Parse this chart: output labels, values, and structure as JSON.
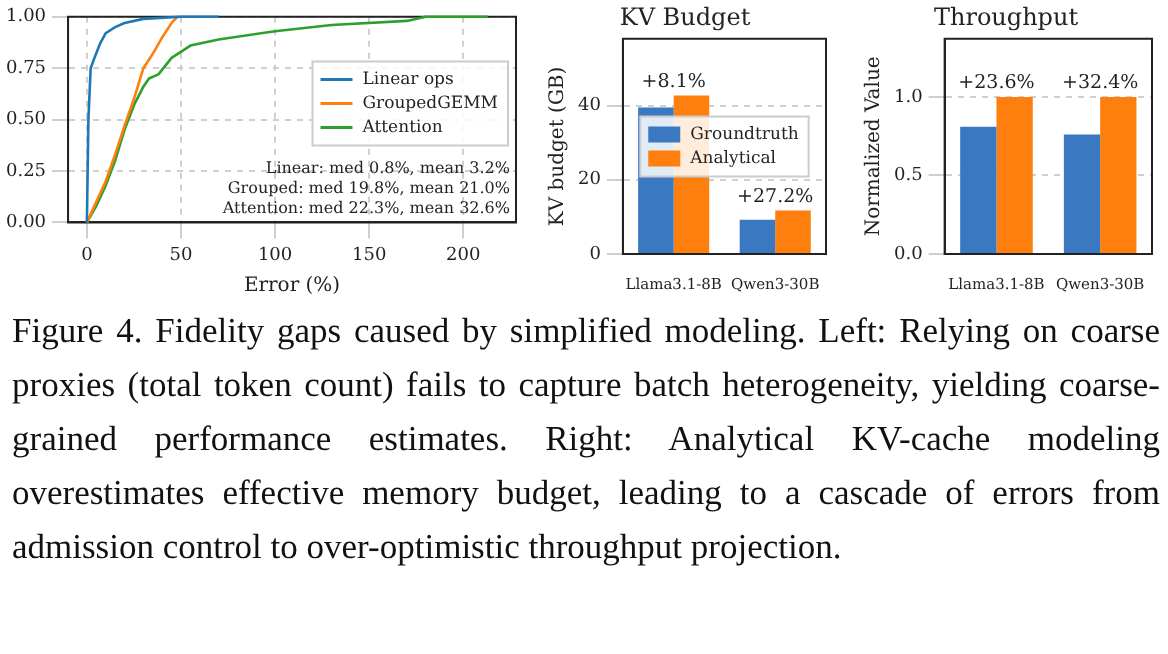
{
  "chart_data": [
    {
      "type": "line",
      "xlabel": "Error (%)",
      "xlim": [
        -10,
        228
      ],
      "xticks": [
        0,
        50,
        100,
        150,
        200
      ],
      "ylim": [
        0,
        1
      ],
      "yticks": [
        {
          "value": 0,
          "label": "0.00"
        },
        {
          "value": 0.25,
          "label": "0.25"
        },
        {
          "value": 0.5,
          "label": "0.50"
        },
        {
          "value": 0.75,
          "label": "0.75"
        },
        {
          "value": 1,
          "label": "1.00"
        }
      ],
      "grid": true,
      "legend": "center right",
      "marker": "none",
      "series": [
        {
          "name": "Linear ops",
          "color": "#1f77b4",
          "x": [
            0,
            0.8,
            2,
            4,
            7,
            10,
            15,
            20,
            30,
            50,
            70
          ],
          "values": [
            0,
            0.5,
            0.75,
            0.8,
            0.87,
            0.92,
            0.95,
            0.97,
            0.99,
            1,
            1
          ]
        },
        {
          "name": "GroupedGEMM",
          "color": "#ff7f0e",
          "x": [
            0,
            5,
            10,
            15,
            20,
            25,
            30,
            35,
            40,
            45,
            48
          ],
          "values": [
            0,
            0.1,
            0.2,
            0.33,
            0.47,
            0.6,
            0.75,
            0.82,
            0.9,
            0.97,
            1
          ]
        },
        {
          "name": "Attention",
          "color": "#2ca02c",
          "x": [
            0,
            5,
            10,
            15,
            20,
            25,
            30,
            33,
            38,
            45,
            55,
            70,
            100,
            130,
            170,
            180,
            213
          ],
          "values": [
            0,
            0.08,
            0.18,
            0.3,
            0.45,
            0.57,
            0.66,
            0.7,
            0.72,
            0.8,
            0.86,
            0.89,
            0.93,
            0.96,
            0.98,
            1,
            1
          ]
        }
      ],
      "annotations": [
        "Linear: med 0.8%, mean 3.2%",
        "Grouped: med 19.8%, mean 21.0%",
        "Attention: med 22.3%, mean 32.6%",
        "Figure 4. Fidelity gaps caused by simplified modeling. Left: Relying on coarse proxies (total token count) fails to capture batch heterogeneity, yielding coarse-grained performance estimates. Right: Analytical KV-cache modeling overestimates effective memory budget, leading to a cascade of errors from admission control to over-optimistic throughput projection."
      ]
    },
    {
      "type": "bar",
      "title": "KV Budget",
      "ylabel": "KV budget (GB)",
      "categories": [
        "Llama3.1-8B",
        "Qwen3-30B"
      ],
      "ylim": [
        0,
        58
      ],
      "yticks": [
        0,
        20,
        40
      ],
      "grid": "y",
      "legend": "center",
      "series": [
        {
          "name": "Groundtruth",
          "color": "#3a78c2",
          "values": [
            39.5,
            9.2
          ]
        },
        {
          "name": "Analytical",
          "color": "#ff7f0e",
          "values": [
            42.7,
            11.7
          ]
        }
      ],
      "annotations": [
        {
          "text": "+8.1%",
          "x": "Llama3.1-8B",
          "y": 42.7
        },
        {
          "text": "+27.2%",
          "x": "Qwen3-30B",
          "y": 11.7
        }
      ]
    },
    {
      "type": "bar",
      "title": "Throughput",
      "ylabel": "Normalized Value",
      "categories": [
        "Llama3.1-8B",
        "Qwen3-30B"
      ],
      "ylim": [
        0,
        1.37
      ],
      "yticks": [
        {
          "value": 0,
          "label": "0.0"
        },
        {
          "value": 0.5,
          "label": "0.5"
        },
        {
          "value": 1,
          "label": "1.0"
        }
      ],
      "grid": "y",
      "series": [
        {
          "color": "#3a78c2",
          "values": [
            0.81,
            0.76
          ]
        },
        {
          "color": "#ff7f0e",
          "values": [
            1,
            1
          ]
        }
      ],
      "annotations": [
        {
          "text": "+23.6%",
          "x": "Llama3.1-8B",
          "y": 1
        },
        {
          "text": "+32.4%",
          "x": "Qwen3-30B",
          "y": 1
        }
      ]
    }
  ]
}
